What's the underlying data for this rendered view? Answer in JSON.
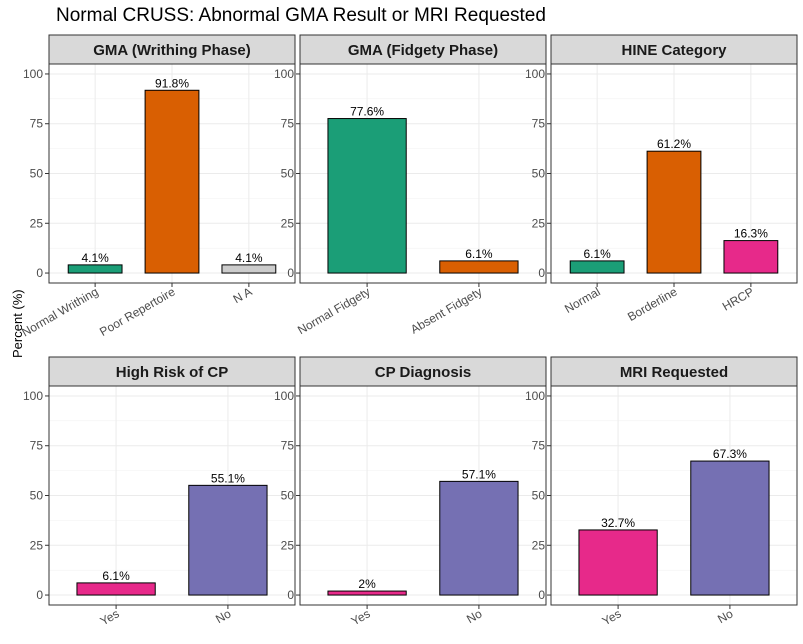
{
  "title": "Normal CRUSS: Abnormal GMA Result or MRI Requested",
  "ylabel": "Percent (%)",
  "colors": {
    "green": "#1b9e77",
    "orange": "#d95f02",
    "gray": "#cccccc",
    "pink": "#e7298a",
    "purple": "#7570b3",
    "strip_bg": "#d9d9d9",
    "grid": "#ebebeb",
    "border": "#333333"
  },
  "chart_data": [
    {
      "type": "bar",
      "title": "GMA (Writhing Phase)",
      "categories": [
        "Normal Writhing",
        "Poor Repertoire",
        "N A"
      ],
      "values": [
        4.1,
        91.8,
        4.1
      ],
      "labels": [
        "4.1%",
        "91.8%",
        "4.1%"
      ],
      "colors": [
        "#1b9e77",
        "#d95f02",
        "#cccccc"
      ],
      "ylim": [
        0,
        100
      ],
      "yticks": [
        0,
        25,
        50,
        75,
        100
      ],
      "grid": true
    },
    {
      "type": "bar",
      "title": "GMA (Fidgety Phase)",
      "categories": [
        "Normal Fidgety",
        "Absent Fidgety"
      ],
      "values": [
        77.6,
        6.1
      ],
      "labels": [
        "77.6%",
        "6.1%"
      ],
      "colors": [
        "#1b9e77",
        "#d95f02"
      ],
      "ylim": [
        0,
        100
      ],
      "yticks": [
        0,
        25,
        50,
        75,
        100
      ],
      "grid": true
    },
    {
      "type": "bar",
      "title": "HINE Category",
      "categories": [
        "Normal",
        "Borderline",
        "HRCP"
      ],
      "values": [
        6.1,
        61.2,
        16.3
      ],
      "labels": [
        "6.1%",
        "61.2%",
        "16.3%"
      ],
      "colors": [
        "#1b9e77",
        "#d95f02",
        "#e7298a"
      ],
      "ylim": [
        0,
        100
      ],
      "yticks": [
        0,
        25,
        50,
        75,
        100
      ],
      "grid": true
    },
    {
      "type": "bar",
      "title": "High Risk of CP",
      "categories": [
        "Yes",
        "No"
      ],
      "values": [
        6.1,
        55.1
      ],
      "labels": [
        "6.1%",
        "55.1%"
      ],
      "colors": [
        "#e7298a",
        "#7570b3"
      ],
      "ylim": [
        0,
        100
      ],
      "yticks": [
        0,
        25,
        50,
        75,
        100
      ],
      "grid": true
    },
    {
      "type": "bar",
      "title": "CP Diagnosis",
      "categories": [
        "Yes",
        "No"
      ],
      "values": [
        2,
        57.1
      ],
      "labels": [
        "2%",
        "57.1%"
      ],
      "colors": [
        "#e7298a",
        "#7570b3"
      ],
      "ylim": [
        0,
        100
      ],
      "yticks": [
        0,
        25,
        50,
        75,
        100
      ],
      "grid": true
    },
    {
      "type": "bar",
      "title": "MRI Requested",
      "categories": [
        "Yes",
        "No"
      ],
      "values": [
        32.7,
        67.3
      ],
      "labels": [
        "32.7%",
        "67.3%"
      ],
      "colors": [
        "#e7298a",
        "#7570b3"
      ],
      "ylim": [
        0,
        100
      ],
      "yticks": [
        0,
        25,
        50,
        75,
        100
      ],
      "grid": true
    }
  ]
}
